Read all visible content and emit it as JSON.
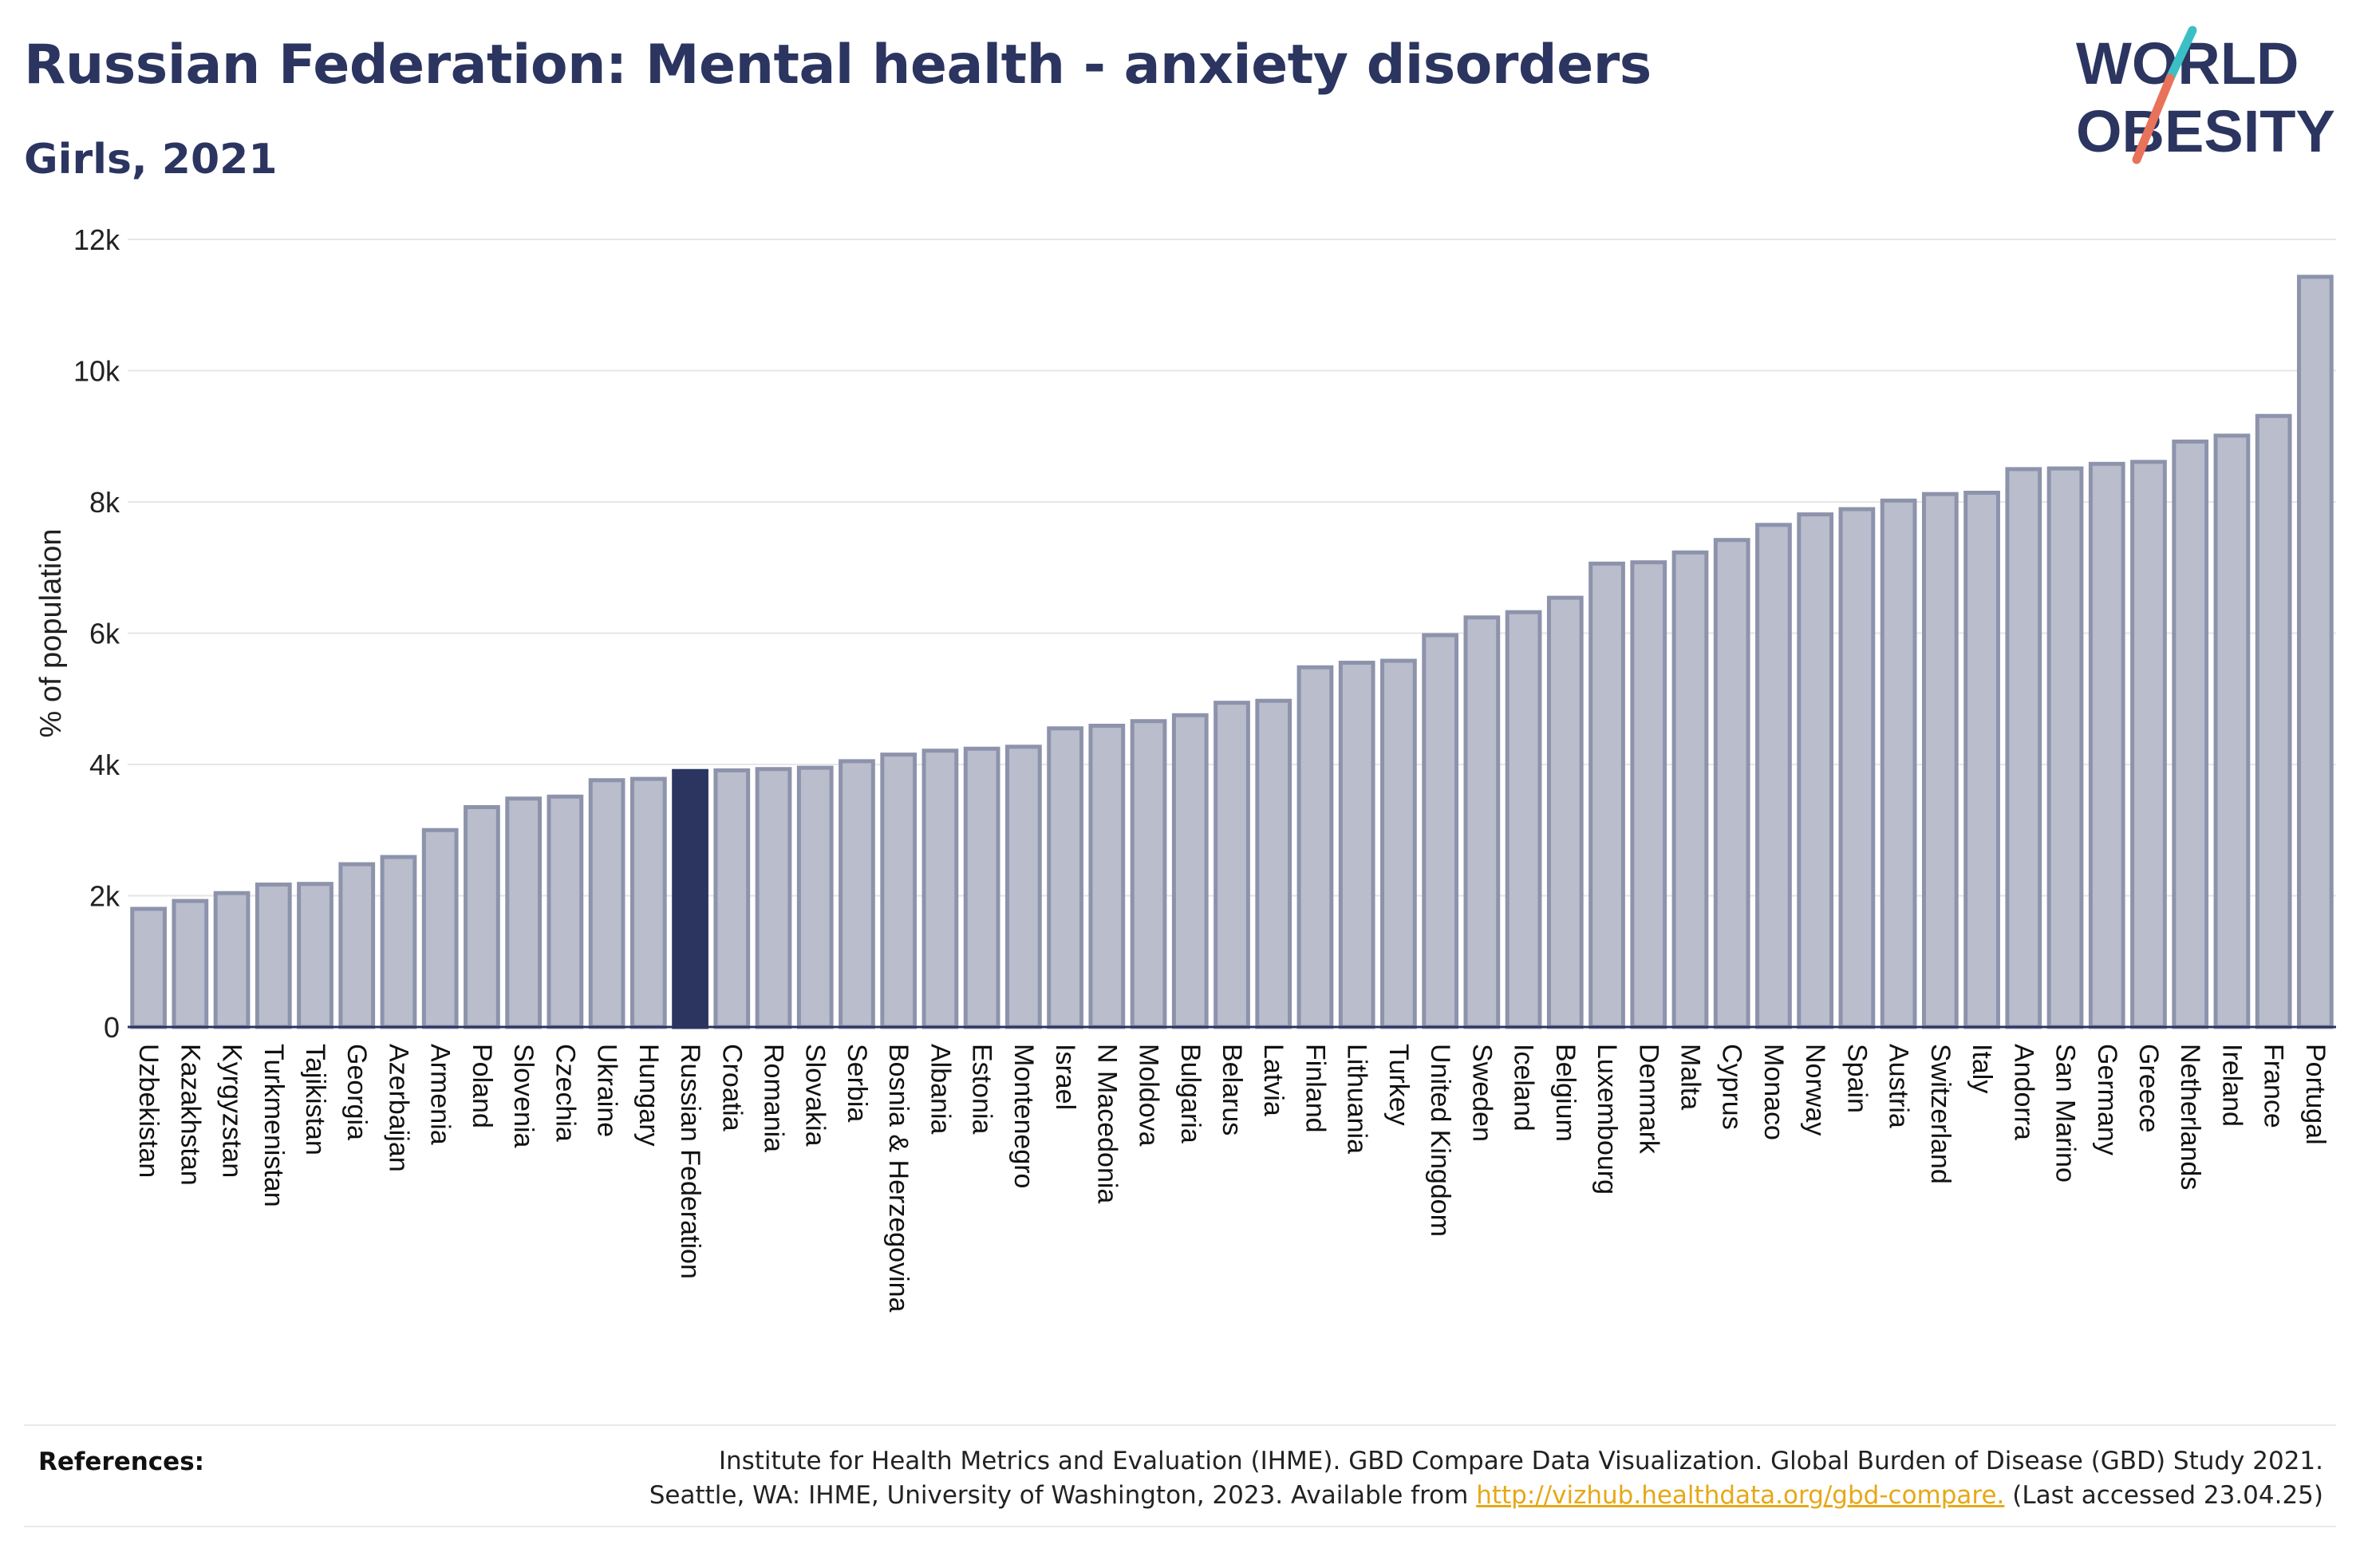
{
  "header": {
    "title": "Russian Federation: Mental health - anxiety disorders",
    "subtitle": "Girls, 2021"
  },
  "logo": {
    "line1": "WORLD",
    "line2": "OBESITY",
    "colors": {
      "navy": "#2b3560",
      "teal": "#3cbfc4",
      "coral": "#e8735a"
    }
  },
  "colors": {
    "bar": "#b9bdcc",
    "bar_edge": "#8d93ab",
    "highlight": "#2b3560",
    "grid": "#e6e6e6",
    "axis": "#2b3560"
  },
  "chart_data": {
    "type": "bar",
    "title": "Russian Federation: Mental health - anxiety disorders",
    "subtitle": "Girls, 2021",
    "xlabel": "",
    "ylabel": "% of population",
    "ylim": [
      0,
      12000
    ],
    "yticks": [
      0,
      2000,
      4000,
      6000,
      8000,
      10000,
      12000
    ],
    "ytick_labels": [
      "0",
      "2k",
      "4k",
      "6k",
      "8k",
      "10k",
      "12k"
    ],
    "grid": true,
    "highlight": "Russian Federation",
    "categories": [
      "Uzbekistan",
      "Kazakhstan",
      "Kyrgyzstan",
      "Turkmenistan",
      "Tajikistan",
      "Georgia",
      "Azerbaijan",
      "Armenia",
      "Poland",
      "Slovenia",
      "Czechia",
      "Ukraine",
      "Hungary",
      "Russian Federation",
      "Croatia",
      "Romania",
      "Slovakia",
      "Serbia",
      "Bosnia & Herzegovina",
      "Albania",
      "Estonia",
      "Montenegro",
      "Israel",
      "N Macedonia",
      "Moldova",
      "Bulgaria",
      "Belarus",
      "Latvia",
      "Finland",
      "Lithuania",
      "Turkey",
      "United Kingdom",
      "Sweden",
      "Iceland",
      "Belgium",
      "Luxembourg",
      "Denmark",
      "Malta",
      "Cyprus",
      "Monaco",
      "Norway",
      "Spain",
      "Austria",
      "Switzerland",
      "Italy",
      "Andorra",
      "San Marino",
      "Germany",
      "Greece",
      "Netherlands",
      "Ireland",
      "France",
      "Portugal"
    ],
    "values": [
      1800,
      1920,
      2040,
      2170,
      2180,
      2480,
      2590,
      3000,
      3350,
      3480,
      3510,
      3760,
      3780,
      3900,
      3910,
      3930,
      3950,
      4050,
      4150,
      4210,
      4240,
      4270,
      4550,
      4590,
      4660,
      4750,
      4940,
      4970,
      5480,
      5550,
      5580,
      5970,
      6240,
      6320,
      6540,
      7060,
      7080,
      7230,
      7420,
      7650,
      7810,
      7890,
      8020,
      8120,
      8140,
      8500,
      8510,
      8580,
      8610,
      8920,
      9010,
      9310,
      11430
    ]
  },
  "references": {
    "label": "References:",
    "line1": "Institute for Health Metrics and Evaluation (IHME). GBD Compare Data Visualization. Global Burden of Disease (GBD) Study 2021.",
    "line2_prefix": "Seattle, WA: IHME, University of Washington, 2023. Available from",
    "link": "http://vizhub.healthdata.org/gbd-compare.",
    "line2_suffix": "(Last accessed 23.04.25)"
  }
}
